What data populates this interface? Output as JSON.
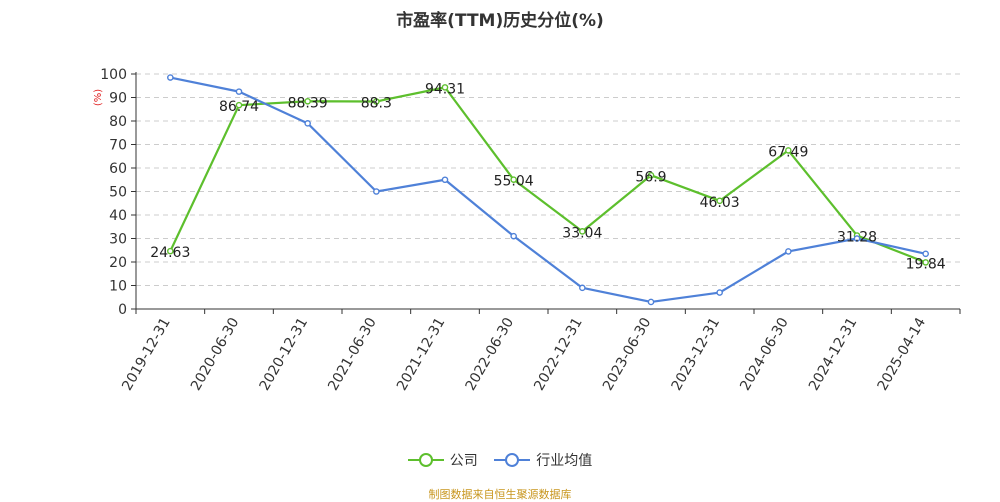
{
  "chart_data": {
    "type": "line",
    "title": "市盈率(TTM)历史分位(%)",
    "ylabel": "(%)",
    "ylim": [
      0,
      100
    ],
    "yticks": [
      0,
      10,
      20,
      30,
      40,
      50,
      60,
      70,
      80,
      90,
      100
    ],
    "categories": [
      "2019-12-31",
      "2020-06-30",
      "2020-12-31",
      "2021-06-30",
      "2021-12-31",
      "2022-06-30",
      "2022-12-31",
      "2023-06-30",
      "2023-12-31",
      "2024-06-30",
      "2024-12-31",
      "2025-04-14"
    ],
    "series": [
      {
        "name": "公司",
        "color": "#5dbf2d",
        "values": [
          24.63,
          86.74,
          88.39,
          88.3,
          94.31,
          55.04,
          33.04,
          56.9,
          46.03,
          67.49,
          31.28,
          19.84
        ],
        "labels": [
          "24.63",
          "86.74",
          "88.39",
          "88.3",
          "94.31",
          "55.04",
          "33.04",
          "56.9",
          "46.03",
          "67.49",
          "31.28",
          "19.84"
        ]
      },
      {
        "name": "行业均值",
        "color": "#4f81d8",
        "values": [
          98.5,
          92.5,
          79,
          50,
          55,
          31,
          9,
          3,
          7,
          24.5,
          30,
          23.5
        ]
      }
    ],
    "grid": true,
    "legend_position": "bottom"
  },
  "source_note": "制图数据来自恒生聚源数据库"
}
